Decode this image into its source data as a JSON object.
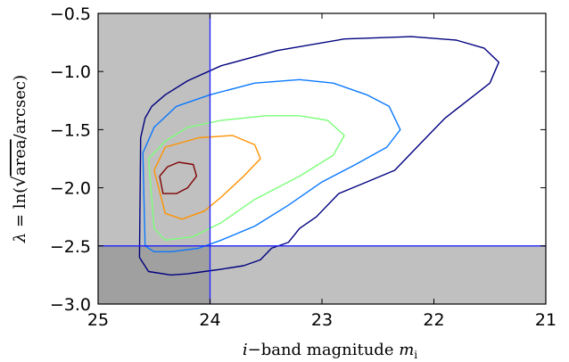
{
  "chart_data": {
    "type": "contour",
    "title": "",
    "xlabel": {
      "var": "i",
      "text": "−band magnitude",
      "sym": "m",
      "sub": "i"
    },
    "ylabel": {
      "lhs": "λ",
      "eq": " = ln(",
      "rad": "area",
      "rest": "/arcsec)"
    },
    "xlim": [
      25,
      21
    ],
    "ylim": [
      -3.0,
      -0.5
    ],
    "x_direction": "reversed",
    "x_ticks": [
      25,
      24,
      23,
      22,
      21
    ],
    "y_ticks": [
      -3.0,
      -2.5,
      -2.0,
      -1.5,
      -1.0,
      -0.5
    ],
    "x_tick_labels": [
      "25",
      "24",
      "23",
      "22",
      "21"
    ],
    "y_tick_labels": [
      "−3.0",
      "−2.5",
      "−2.0",
      "−1.5",
      "−1.0",
      "−0.5"
    ],
    "grid": false,
    "legend": "none",
    "cut_lines": {
      "magnitude_cut": 24.0,
      "size_cut": -2.5,
      "line_color": "#1f1fff"
    },
    "excluded_regions": [
      {
        "x": [
          25,
          24
        ],
        "y": [
          -2.5,
          -0.5
        ],
        "color": "#c0c0c0"
      },
      {
        "x": [
          24,
          21
        ],
        "y": [
          -3.0,
          -2.5
        ],
        "color": "#c0c0c0"
      },
      {
        "x": [
          25,
          24
        ],
        "y": [
          -3.0,
          -2.5
        ],
        "color": "#a0a0a0"
      }
    ],
    "series": [
      {
        "level": 1,
        "color": "#00007f",
        "x": [
          24.62,
          24.58,
          24.52,
          24.4,
          24.2,
          23.9,
          23.4,
          22.8,
          22.2,
          21.8,
          21.55,
          21.42,
          21.5,
          21.7,
          21.9,
          22.1,
          22.35,
          22.6,
          22.85,
          23.05,
          23.2,
          23.3,
          23.45,
          23.55,
          23.7,
          23.9,
          24.05,
          24.2,
          24.35,
          24.55,
          24.63,
          24.62
        ],
        "y": [
          -1.57,
          -1.4,
          -1.3,
          -1.2,
          -1.08,
          -0.95,
          -0.82,
          -0.72,
          -0.7,
          -0.73,
          -0.8,
          -0.92,
          -1.1,
          -1.25,
          -1.4,
          -1.6,
          -1.85,
          -1.95,
          -2.05,
          -2.25,
          -2.35,
          -2.47,
          -2.52,
          -2.62,
          -2.67,
          -2.7,
          -2.72,
          -2.74,
          -2.75,
          -2.72,
          -2.6,
          -1.57
        ]
      },
      {
        "level": 2,
        "color": "#0a78ff",
        "x": [
          24.6,
          24.5,
          24.3,
          24.0,
          23.6,
          23.2,
          22.9,
          22.6,
          22.4,
          22.3,
          22.42,
          22.7,
          23.0,
          23.3,
          23.6,
          23.9,
          24.1,
          24.35,
          24.5,
          24.58,
          24.6
        ],
        "y": [
          -1.7,
          -1.48,
          -1.3,
          -1.2,
          -1.1,
          -1.07,
          -1.1,
          -1.2,
          -1.3,
          -1.5,
          -1.65,
          -1.8,
          -1.95,
          -2.15,
          -2.33,
          -2.45,
          -2.52,
          -2.55,
          -2.55,
          -2.5,
          -1.7
        ]
      },
      {
        "level": 3,
        "color": "#7cff79",
        "x": [
          24.55,
          24.4,
          24.2,
          23.9,
          23.5,
          23.2,
          22.95,
          22.8,
          22.9,
          23.2,
          23.6,
          23.9,
          24.15,
          24.4,
          24.5,
          24.55
        ],
        "y": [
          -1.75,
          -1.6,
          -1.48,
          -1.42,
          -1.38,
          -1.38,
          -1.42,
          -1.55,
          -1.72,
          -1.9,
          -2.1,
          -2.3,
          -2.42,
          -2.45,
          -2.35,
          -1.75
        ]
      },
      {
        "level": 4,
        "color": "#ff9200",
        "x": [
          24.5,
          24.4,
          24.1,
          23.8,
          23.6,
          23.55,
          23.7,
          23.9,
          24.05,
          24.25,
          24.4,
          24.5
        ],
        "y": [
          -1.85,
          -1.65,
          -1.57,
          -1.55,
          -1.63,
          -1.75,
          -1.9,
          -2.08,
          -2.2,
          -2.27,
          -2.22,
          -1.85
        ]
      },
      {
        "level": 5,
        "color": "#7f0000",
        "x": [
          24.45,
          24.38,
          24.28,
          24.15,
          24.12,
          24.2,
          24.3,
          24.42,
          24.45
        ],
        "y": [
          -1.9,
          -1.82,
          -1.78,
          -1.8,
          -1.9,
          -2.0,
          -2.05,
          -2.05,
          -1.9
        ]
      }
    ]
  }
}
